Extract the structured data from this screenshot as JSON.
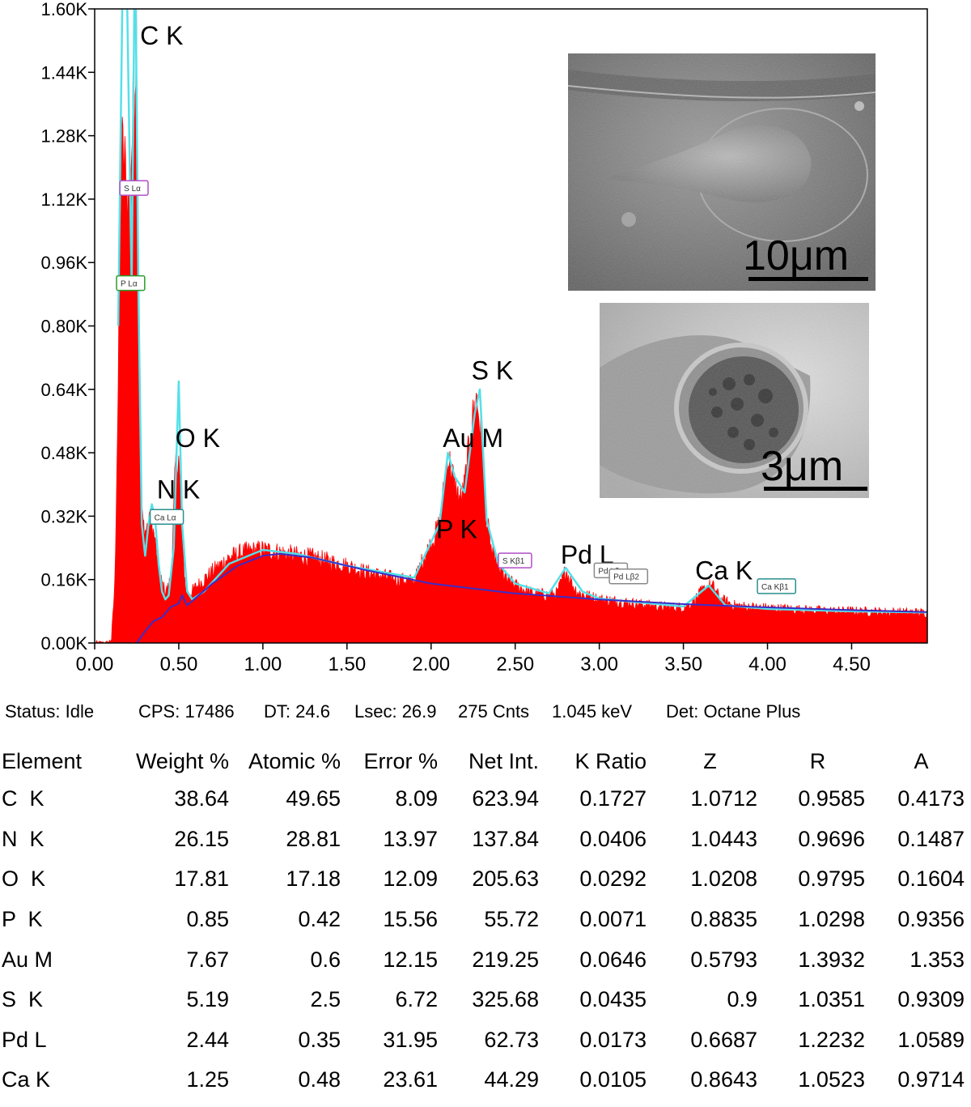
{
  "chart_data": {
    "type": "area",
    "xlim": [
      0,
      4.95
    ],
    "ylim": [
      0,
      1600
    ],
    "x_ticks": [
      "0.00",
      "0.50",
      "1.00",
      "1.50",
      "2.00",
      "2.50",
      "3.00",
      "3.50",
      "4.00",
      "4.50"
    ],
    "y_ticks": [
      "0.00K",
      "0.16K",
      "0.32K",
      "0.48K",
      "0.64K",
      "0.80K",
      "0.96K",
      "1.12K",
      "1.28K",
      "1.44K",
      "1.60K"
    ],
    "spectrum": {
      "x": [
        0.0,
        0.08,
        0.1,
        0.12,
        0.14,
        0.16,
        0.18,
        0.2,
        0.22,
        0.24,
        0.25,
        0.26,
        0.27,
        0.28,
        0.3,
        0.32,
        0.34,
        0.36,
        0.38,
        0.4,
        0.42,
        0.44,
        0.46,
        0.48,
        0.5,
        0.52,
        0.54,
        0.56,
        0.6,
        0.7,
        0.8,
        0.9,
        1.0,
        1.1,
        1.2,
        1.3,
        1.4,
        1.5,
        1.6,
        1.7,
        1.8,
        1.9,
        1.95,
        2.0,
        2.05,
        2.08,
        2.1,
        2.12,
        2.15,
        2.18,
        2.2,
        2.24,
        2.27,
        2.3,
        2.33,
        2.36,
        2.4,
        2.45,
        2.5,
        2.6,
        2.7,
        2.75,
        2.8,
        2.84,
        2.88,
        2.92,
        2.96,
        3.0,
        3.1,
        3.2,
        3.3,
        3.4,
        3.5,
        3.55,
        3.6,
        3.65,
        3.68,
        3.72,
        3.8,
        3.9,
        4.0,
        4.1,
        4.2,
        4.3,
        4.4,
        4.5,
        4.6,
        4.7,
        4.8,
        4.95
      ],
      "y": [
        0,
        0,
        10,
        150,
        650,
        1250,
        1200,
        1100,
        1250,
        1450,
        1600,
        900,
        400,
        320,
        280,
        300,
        300,
        250,
        180,
        150,
        130,
        140,
        200,
        450,
        470,
        250,
        140,
        120,
        140,
        180,
        215,
        230,
        235,
        228,
        220,
        215,
        205,
        195,
        180,
        170,
        160,
        155,
        210,
        250,
        300,
        400,
        470,
        440,
        380,
        360,
        400,
        550,
        620,
        520,
        310,
        230,
        190,
        160,
        145,
        125,
        120,
        125,
        185,
        145,
        125,
        120,
        115,
        110,
        105,
        100,
        95,
        90,
        90,
        100,
        125,
        145,
        140,
        110,
        95,
        90,
        88,
        86,
        84,
        82,
        80,
        80,
        79,
        78,
        77,
        76
      ]
    },
    "fit_curve": {
      "x": [
        0.14,
        0.17,
        0.19,
        0.22,
        0.24,
        0.26,
        0.28,
        0.3,
        0.32,
        0.34,
        0.36,
        0.38,
        0.4,
        0.42,
        0.44,
        0.47,
        0.5,
        0.52,
        0.55,
        0.58,
        0.65,
        0.8,
        1.0,
        1.2,
        1.5,
        1.9,
        2.05,
        2.1,
        2.14,
        2.2,
        2.26,
        2.29,
        2.33,
        2.4,
        2.5,
        2.7,
        2.8,
        2.9,
        3.0,
        3.5,
        3.65,
        3.75,
        4.0,
        4.5,
        4.95
      ],
      "y": [
        800,
        1800,
        1700,
        900,
        1800,
        900,
        300,
        220,
        300,
        350,
        310,
        200,
        130,
        110,
        120,
        240,
        660,
        300,
        130,
        110,
        130,
        200,
        235,
        225,
        195,
        165,
        300,
        480,
        420,
        380,
        580,
        640,
        310,
        200,
        150,
        125,
        190,
        130,
        112,
        92,
        145,
        95,
        86,
        80,
        77
      ]
    },
    "background_curve": {
      "x": [
        0.25,
        0.3,
        0.35,
        0.4,
        0.45,
        0.5,
        0.52,
        0.55,
        0.7,
        0.85,
        1.0,
        1.1,
        1.3,
        1.6,
        2.0,
        2.5,
        3.0,
        3.5,
        4.0,
        4.5,
        4.95
      ],
      "y": [
        0,
        30,
        55,
        65,
        90,
        100,
        120,
        95,
        150,
        195,
        220,
        225,
        215,
        185,
        150,
        125,
        110,
        98,
        90,
        83,
        78
      ]
    },
    "peak_labels": [
      {
        "text": "C K",
        "x": 0.27,
        "y": 1510
      },
      {
        "text": "O K",
        "x": 0.48,
        "y": 495
      },
      {
        "text": "N K",
        "x": 0.37,
        "y": 365
      },
      {
        "text": "Au M",
        "x": 2.07,
        "y": 495
      },
      {
        "text": "S K",
        "x": 2.24,
        "y": 665
      },
      {
        "text": "P K",
        "x": 2.03,
        "y": 265
      },
      {
        "text": "Pd L",
        "x": 2.77,
        "y": 200
      },
      {
        "text": "Ca K",
        "x": 3.57,
        "y": 160
      }
    ],
    "line_markers": [
      {
        "text": "S Lα",
        "x": 0.15,
        "y": 1140,
        "color": "#b04fc8"
      },
      {
        "text": "P Lα",
        "x": 0.13,
        "y": 900,
        "color": "#2a9d2a"
      },
      {
        "text": "Ca Lα",
        "x": 0.33,
        "y": 310,
        "color": "#2a8f8f"
      },
      {
        "text": "S Kβ1",
        "x": 2.4,
        "y": 200,
        "color": "#b04fc8"
      },
      {
        "text": "Pd Lβ",
        "x": 2.97,
        "y": 175,
        "color": "#888888"
      },
      {
        "text": "Pd Lβ2",
        "x": 3.06,
        "y": 160,
        "color": "#888888"
      },
      {
        "text": "Ca Kβ1",
        "x": 3.94,
        "y": 135,
        "color": "#2a8f8f"
      }
    ],
    "colors": {
      "spectrum": "#ff0000",
      "fit": "#55e0e8",
      "background": "#3a2ec8",
      "axis": "#000000"
    },
    "grid": false
  },
  "images": {
    "top": {
      "scale_label": "10μm"
    },
    "bottom": {
      "scale_label": "3μm"
    }
  },
  "status": {
    "state": "Status: Idle",
    "cps": "CPS: 17486",
    "dt": "DT: 24.6",
    "lsec": "Lsec: 26.9",
    "cnts": "275 Cnts",
    "kev": "1.045 keV",
    "det": "Det: Octane Plus"
  },
  "table": {
    "headers": [
      "Element",
      "Weight %",
      "Atomic %",
      "Error %",
      "Net Int.",
      "K Ratio",
      "Z",
      "R",
      "A"
    ],
    "rows": [
      [
        "C  K",
        "38.64",
        "49.65",
        "8.09",
        "623.94",
        "0.1727",
        "1.0712",
        "0.9585",
        "0.4173"
      ],
      [
        "N  K",
        "26.15",
        "28.81",
        "13.97",
        "137.84",
        "0.0406",
        "1.0443",
        "0.9696",
        "0.1487"
      ],
      [
        "O  K",
        "17.81",
        "17.18",
        "12.09",
        "205.63",
        "0.0292",
        "1.0208",
        "0.9795",
        "0.1604"
      ],
      [
        "P  K",
        "0.85",
        "0.42",
        "15.56",
        "55.72",
        "0.0071",
        "0.8835",
        "1.0298",
        "0.9356"
      ],
      [
        "Au M",
        "7.67",
        "0.6",
        "12.15",
        "219.25",
        "0.0646",
        "0.5793",
        "1.3932",
        "1.353"
      ],
      [
        "S  K",
        "5.19",
        "2.5",
        "6.72",
        "325.68",
        "0.0435",
        "0.9",
        "1.0351",
        "0.9309"
      ],
      [
        "Pd L",
        "2.44",
        "0.35",
        "31.95",
        "62.73",
        "0.0173",
        "0.6687",
        "1.2232",
        "1.0589"
      ],
      [
        "Ca K",
        "1.25",
        "0.48",
        "23.61",
        "44.29",
        "0.0105",
        "0.8643",
        "1.0523",
        "0.9714"
      ]
    ]
  }
}
